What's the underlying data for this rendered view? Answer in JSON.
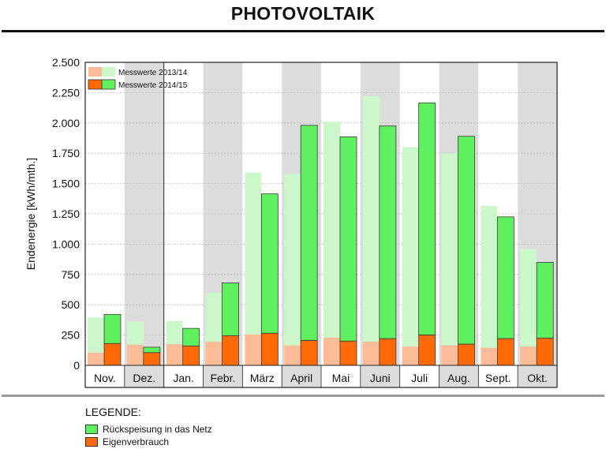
{
  "title": "PHOTOVOLTAIK",
  "legend": {
    "title": "LEGENDE:",
    "items": [
      {
        "label": "Rückspeisung in das Netz",
        "color": "#5ff05f"
      },
      {
        "label": "Eigenverbrauch",
        "color": "#ff6a06"
      }
    ]
  },
  "chart_data": {
    "type": "bar",
    "ylabel": "Endenergie [kWh/mth.]",
    "ylim": [
      0,
      2500
    ],
    "yticks": [
      0,
      250,
      500,
      750,
      1000,
      1250,
      1500,
      1750,
      2000,
      2250,
      2500
    ],
    "ytick_labels": [
      "0",
      "250",
      "500",
      "750",
      "1.000",
      "1.250",
      "1.500",
      "1.750",
      "2.000",
      "2.250",
      "2.500"
    ],
    "categories": [
      "Nov.",
      "Dez.",
      "Jan.",
      "Febr.",
      "März",
      "April",
      "Mai",
      "Juni",
      "Juli",
      "Aug.",
      "Sept.",
      "Okt."
    ],
    "legend_entries": [
      "Messwerte 2013/14",
      "Messwerte 2014/15"
    ],
    "series": [
      {
        "name": "Messwerte 2013/14",
        "eigenverbrauch": [
          105,
          170,
          175,
          195,
          255,
          165,
          230,
          195,
          155,
          165,
          145,
          155
        ],
        "total": [
          395,
          360,
          365,
          600,
          1590,
          1580,
          2010,
          2220,
          1800,
          1750,
          1315,
          960
        ]
      },
      {
        "name": "Messwerte 2014/15",
        "eigenverbrauch": [
          180,
          105,
          160,
          245,
          265,
          205,
          200,
          220,
          250,
          175,
          220,
          225
        ],
        "total": [
          420,
          150,
          305,
          680,
          1415,
          1980,
          1885,
          1975,
          2165,
          1890,
          1225,
          850
        ]
      }
    ],
    "colors": {
      "light_orange": "#fcbc97",
      "light_green": "#cbf7cb",
      "orange": "#ff6a06",
      "green": "#5ff05f",
      "shade": "#dcdcdc",
      "grid": "#bdbdbd"
    }
  }
}
